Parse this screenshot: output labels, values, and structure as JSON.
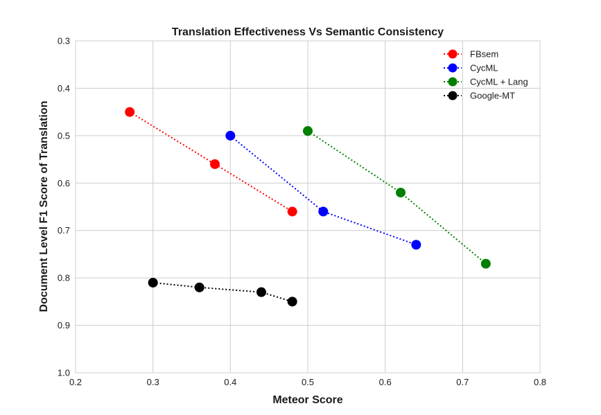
{
  "chart_data": {
    "type": "line",
    "title": "Translation Effectiveness Vs Semantic Consistency",
    "xlabel": "Meteor Score",
    "ylabel": "Document Level F1 Score of Translation",
    "xlim": [
      0.2,
      0.8
    ],
    "ylim": [
      0.3,
      1.0
    ],
    "y_inverted": true,
    "x_ticks": [
      "0.2",
      "0.3",
      "0.4",
      "0.5",
      "0.6",
      "0.7",
      "0.8"
    ],
    "y_ticks": [
      "0.3",
      "0.4",
      "0.5",
      "0.6",
      "0.7",
      "0.8",
      "0.9",
      "1.0"
    ],
    "grid": true,
    "legend_position": "top-right",
    "series": [
      {
        "name": "FBsem",
        "color": "#ff0000",
        "x": [
          0.27,
          0.38,
          0.48
        ],
        "y": [
          0.45,
          0.56,
          0.66
        ]
      },
      {
        "name": "CycML",
        "color": "#0000ff",
        "x": [
          0.4,
          0.52,
          0.64
        ],
        "y": [
          0.5,
          0.66,
          0.73
        ]
      },
      {
        "name": "CycML + Lang",
        "color": "#008000",
        "x": [
          0.5,
          0.62,
          0.73
        ],
        "y": [
          0.49,
          0.62,
          0.77
        ]
      },
      {
        "name": "Google-MT",
        "color": "#000000",
        "x": [
          0.3,
          0.36,
          0.44,
          0.48
        ],
        "y": [
          0.81,
          0.82,
          0.83,
          0.85
        ]
      }
    ]
  }
}
